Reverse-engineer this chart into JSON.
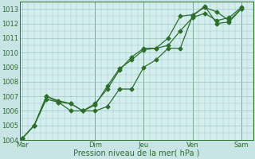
{
  "title": "",
  "xlabel": "Pression niveau de la mer( hPa )",
  "ylabel": "",
  "bg_color": "#c8e4e4",
  "plot_bg_color": "#d4eded",
  "grid_color": "#9dc4c4",
  "line_color": "#2d6e2d",
  "ylim": [
    1004,
    1013.5
  ],
  "yticks": [
    1004,
    1005,
    1006,
    1007,
    1008,
    1009,
    1010,
    1011,
    1012,
    1013
  ],
  "day_labels": [
    "Mar",
    "Dim",
    "Jeu",
    "Ven",
    "Sam"
  ],
  "day_positions": [
    0,
    3.0,
    5.0,
    7.0,
    9.0
  ],
  "xlim": [
    -0.1,
    9.5
  ],
  "line1_x": [
    0,
    0.5,
    1.0,
    1.5,
    2.0,
    2.5,
    3.0,
    3.5,
    4.0,
    4.5,
    5.0,
    5.5,
    6.0,
    6.5,
    7.0,
    7.5,
    8.0,
    8.5,
    9.0
  ],
  "line1_y": [
    1004.1,
    1005.0,
    1006.8,
    1006.6,
    1006.0,
    1006.0,
    1006.0,
    1006.3,
    1007.5,
    1007.5,
    1009.0,
    1009.5,
    1010.3,
    1010.3,
    1012.5,
    1013.2,
    1012.0,
    1012.1,
    1013.0
  ],
  "line2_x": [
    0,
    0.5,
    1.0,
    1.5,
    2.0,
    2.5,
    3.0,
    3.5,
    4.0,
    4.5,
    5.0,
    5.5,
    6.0,
    6.5,
    7.0,
    7.5,
    8.0,
    8.5,
    9.0
  ],
  "line2_y": [
    1004.1,
    1005.0,
    1007.0,
    1006.6,
    1006.5,
    1006.0,
    1006.4,
    1007.7,
    1008.9,
    1009.5,
    1010.2,
    1010.3,
    1011.0,
    1012.5,
    1012.6,
    1013.1,
    1012.8,
    1012.2,
    1013.0
  ],
  "line3_x": [
    0,
    0.5,
    1.0,
    1.5,
    2.0,
    2.5,
    3.0,
    3.5,
    4.0,
    4.5,
    5.0,
    5.5,
    6.0,
    6.5,
    7.0,
    7.5,
    8.0,
    8.5,
    9.0
  ],
  "line3_y": [
    1004.1,
    1005.0,
    1007.0,
    1006.7,
    1006.5,
    1006.0,
    1006.5,
    1007.5,
    1008.8,
    1009.7,
    1010.3,
    1010.3,
    1010.5,
    1011.5,
    1012.4,
    1012.7,
    1012.2,
    1012.4,
    1013.1
  ],
  "marker_size": 2.5,
  "line_width": 0.9,
  "font_size_tick": 6,
  "font_size_xlabel": 7,
  "vline_positions": [
    3.0,
    5.0,
    7.0,
    9.0
  ],
  "vline_color": "#2d6e2d",
  "tick_color": "#2d6e2d"
}
